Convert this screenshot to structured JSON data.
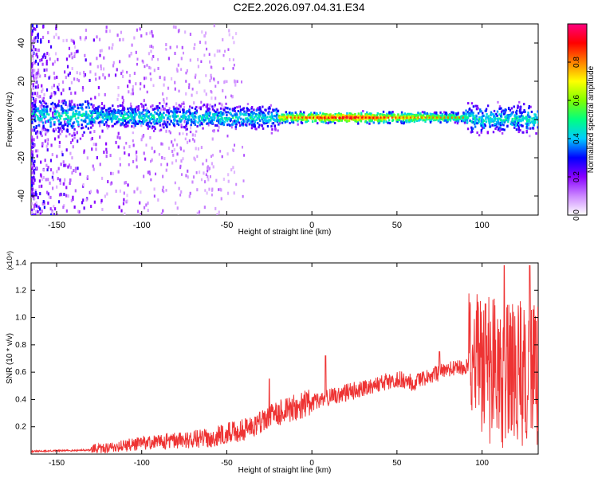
{
  "title": "C2E2.2026.097.04.31.E34",
  "chart_data": [
    {
      "type": "heatmap",
      "name": "spectrogram",
      "xlabel": "Height of straight line (km)",
      "ylabel": "Frequency (Hz)",
      "xlim": [
        -165,
        133
      ],
      "ylim": [
        -50,
        50
      ],
      "x_ticks": [
        -150,
        -100,
        -50,
        0,
        50,
        100
      ],
      "x_tick_labels": [
        "-150",
        "-100",
        "-50",
        "0",
        "50",
        "100"
      ],
      "y_ticks": [
        40,
        20,
        0,
        -20,
        -40
      ],
      "y_tick_labels": [
        "40",
        "20",
        "0",
        "-20",
        "-40"
      ],
      "band_center_hz": [
        {
          "x": -140,
          "f": 2
        },
        {
          "x": -100,
          "f": 1
        },
        {
          "x": -50,
          "f": 1
        },
        {
          "x": 0,
          "f": 1
        },
        {
          "x": 50,
          "f": 1
        },
        {
          "x": 90,
          "f": 1
        },
        {
          "x": 100,
          "f": 0
        },
        {
          "x": 130,
          "f": 0
        }
      ],
      "colorbar": {
        "label": "Normalized spectral amplitude",
        "range": [
          0,
          1
        ],
        "ticks": [
          0.0,
          0.2,
          0.4,
          0.6,
          0.8
        ],
        "tick_labels": [
          "0.0",
          "0.2",
          "0.4",
          "0.6",
          "0.8"
        ],
        "colors": [
          "#ffffff",
          "#cc88ff",
          "#8800ff",
          "#0000ff",
          "#00ccff",
          "#00ff80",
          "#80ff00",
          "#ffff00",
          "#ff8000",
          "#ff0000",
          "#ff0080"
        ]
      }
    },
    {
      "type": "line",
      "name": "snr",
      "xlabel": "Height of straight line (km)",
      "ylabel": "SNR (10 * v/v)",
      "y_multiplier_label": "(x10⁴)",
      "xlim": [
        -165,
        133
      ],
      "ylim": [
        0,
        1.4
      ],
      "x_ticks": [
        -150,
        -100,
        -50,
        0,
        50,
        100
      ],
      "x_tick_labels": [
        "-150",
        "-100",
        "-50",
        "0",
        "50",
        "100"
      ],
      "y_ticks": [
        0.2,
        0.4,
        0.6,
        0.8,
        1.0,
        1.2,
        1.4
      ],
      "y_tick_labels": [
        "0.2",
        "0.4",
        "0.6",
        "0.8",
        "1.0",
        "1.2",
        "1.4"
      ],
      "color": "#ee3333",
      "envelope": [
        {
          "x": -165,
          "y": 0.02
        },
        {
          "x": -130,
          "y": 0.03
        },
        {
          "x": -100,
          "y": 0.08
        },
        {
          "x": -60,
          "y": 0.12
        },
        {
          "x": -40,
          "y": 0.18
        },
        {
          "x": -20,
          "y": 0.3
        },
        {
          "x": 0,
          "y": 0.38
        },
        {
          "x": 20,
          "y": 0.45
        },
        {
          "x": 40,
          "y": 0.52
        },
        {
          "x": 50,
          "y": 0.55
        },
        {
          "x": 60,
          "y": 0.52
        },
        {
          "x": 80,
          "y": 0.62
        },
        {
          "x": 95,
          "y": 0.65
        },
        {
          "x": 110,
          "y": 0.6
        },
        {
          "x": 133,
          "y": 0.55
        }
      ],
      "spikes": [
        {
          "x": -25,
          "y": 0.55
        },
        {
          "x": 8,
          "y": 0.72
        },
        {
          "x": 75,
          "y": 0.75
        },
        {
          "x": 102,
          "y": 1.1
        },
        {
          "x": 113,
          "y": 1.38
        },
        {
          "x": 128,
          "y": 1.38
        }
      ]
    }
  ]
}
